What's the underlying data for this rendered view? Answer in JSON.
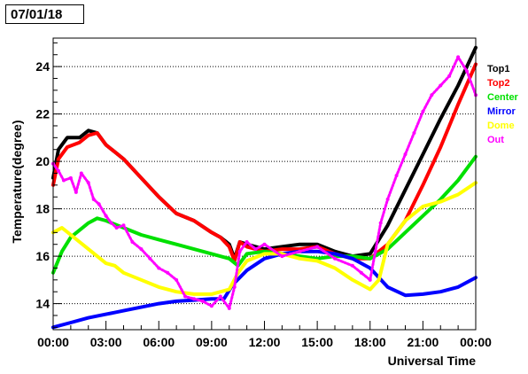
{
  "title": "07/01/18",
  "chart_data": {
    "type": "line",
    "title": "07/01/18",
    "xlabel": "Universal Time",
    "ylabel": "Temperature(degree)",
    "xlim": [
      0,
      24
    ],
    "ylim": [
      12.9,
      25.2
    ],
    "x_ticks": [
      0,
      3,
      6,
      9,
      12,
      15,
      18,
      21,
      24
    ],
    "x_tick_labels": [
      "00:00",
      "03:00",
      "06:00",
      "09:00",
      "12:00",
      "15:00",
      "18:00",
      "21:00",
      "00:00"
    ],
    "y_ticks": [
      14,
      16,
      18,
      20,
      22,
      24
    ],
    "y_tick_labels": [
      "14",
      "16",
      "18",
      "20",
      "22",
      "24"
    ],
    "grid": "horizontal dotted",
    "legend_position": "right",
    "series": [
      {
        "name": "Top1",
        "color": "#000000",
        "x": [
          0.0,
          0.3,
          0.8,
          1.5,
          2.0,
          2.5,
          3.0,
          4.0,
          5.0,
          6.0,
          7.0,
          8.0,
          9.0,
          9.5,
          10.0,
          10.3,
          10.6,
          11.0,
          12.0,
          13.0,
          14.0,
          15.0,
          16.0,
          17.0,
          18.0,
          19.0,
          20.0,
          21.0,
          22.0,
          23.0,
          24.0
        ],
        "y": [
          19.3,
          20.5,
          21.0,
          21.0,
          21.3,
          21.2,
          20.7,
          20.1,
          19.3,
          18.5,
          17.8,
          17.5,
          17.0,
          16.8,
          16.5,
          15.9,
          16.6,
          16.5,
          16.3,
          16.4,
          16.5,
          16.5,
          16.2,
          16.0,
          16.1,
          17.3,
          18.8,
          20.3,
          21.8,
          23.2,
          24.8
        ]
      },
      {
        "name": "Top2",
        "color": "#ff0000",
        "x": [
          0.0,
          0.3,
          0.8,
          1.5,
          2.0,
          2.5,
          3.0,
          4.0,
          5.0,
          6.0,
          7.0,
          8.0,
          9.0,
          9.5,
          10.0,
          10.3,
          10.6,
          11.0,
          12.0,
          13.0,
          14.0,
          15.0,
          16.0,
          17.0,
          18.0,
          19.0,
          20.0,
          21.0,
          22.0,
          23.0,
          24.0
        ],
        "y": [
          19.0,
          20.1,
          20.6,
          20.8,
          21.1,
          21.2,
          20.7,
          20.1,
          19.3,
          18.5,
          17.8,
          17.5,
          17.0,
          16.8,
          16.4,
          15.8,
          16.6,
          16.4,
          16.2,
          16.3,
          16.3,
          16.4,
          16.1,
          15.9,
          15.9,
          16.5,
          17.5,
          19.0,
          20.6,
          22.4,
          24.1
        ]
      },
      {
        "name": "Center",
        "color": "#00e000",
        "x": [
          0.0,
          0.5,
          1.0,
          2.0,
          2.5,
          3.0,
          4.0,
          5.0,
          6.0,
          7.0,
          8.0,
          9.0,
          10.0,
          10.5,
          11.0,
          12.0,
          13.0,
          14.0,
          15.0,
          16.0,
          17.0,
          18.0,
          19.0,
          20.0,
          21.0,
          22.0,
          23.0,
          24.0
        ],
        "y": [
          15.3,
          16.2,
          16.8,
          17.4,
          17.6,
          17.5,
          17.2,
          16.9,
          16.7,
          16.5,
          16.3,
          16.1,
          15.9,
          15.6,
          16.1,
          16.2,
          16.1,
          16.0,
          15.9,
          16.0,
          16.0,
          15.9,
          16.3,
          17.0,
          17.7,
          18.4,
          19.2,
          20.2
        ]
      },
      {
        "name": "Mirror",
        "color": "#0000ff",
        "x": [
          0.0,
          1.0,
          2.0,
          3.0,
          4.0,
          5.0,
          6.0,
          7.0,
          8.0,
          9.0,
          9.7,
          10.2,
          11.0,
          12.0,
          13.0,
          14.0,
          15.0,
          16.0,
          17.0,
          18.0,
          19.0,
          20.0,
          21.0,
          22.0,
          23.0,
          24.0
        ],
        "y": [
          13.0,
          13.2,
          13.4,
          13.55,
          13.7,
          13.85,
          14.0,
          14.1,
          14.15,
          14.2,
          14.2,
          14.8,
          15.4,
          15.9,
          16.1,
          16.2,
          16.2,
          16.1,
          15.9,
          15.5,
          14.7,
          14.35,
          14.4,
          14.5,
          14.7,
          15.1
        ]
      },
      {
        "name": "Dome",
        "color": "#ffff00",
        "x": [
          0.0,
          0.5,
          1.0,
          2.0,
          3.0,
          3.5,
          4.0,
          5.0,
          6.0,
          7.0,
          8.0,
          9.0,
          10.0,
          10.5,
          11.0,
          12.0,
          13.0,
          14.0,
          15.0,
          16.0,
          17.0,
          18.0,
          18.5,
          19.0,
          20.0,
          21.0,
          22.0,
          23.0,
          24.0
        ],
        "y": [
          17.0,
          17.2,
          16.9,
          16.3,
          15.7,
          15.6,
          15.3,
          15.0,
          14.7,
          14.5,
          14.4,
          14.4,
          14.6,
          15.3,
          15.8,
          16.1,
          16.1,
          15.9,
          15.8,
          15.5,
          15.0,
          14.6,
          15.0,
          16.5,
          17.5,
          18.1,
          18.3,
          18.6,
          19.1
        ]
      },
      {
        "name": "Out",
        "color": "#ff00ff",
        "x": [
          0.0,
          0.3,
          0.6,
          1.0,
          1.3,
          1.6,
          2.0,
          2.3,
          2.6,
          3.0,
          3.3,
          3.6,
          4.0,
          4.5,
          5.0,
          5.5,
          6.0,
          6.5,
          7.0,
          7.5,
          8.0,
          8.5,
          9.0,
          9.5,
          10.0,
          10.3,
          10.6,
          11.0,
          11.5,
          12.0,
          13.0,
          14.0,
          15.0,
          16.0,
          17.0,
          17.5,
          18.0,
          18.3,
          18.6,
          19.0,
          19.5,
          20.0,
          20.5,
          21.0,
          21.5,
          22.0,
          22.5,
          23.0,
          23.5,
          24.0
        ],
        "y": [
          19.9,
          19.6,
          19.2,
          19.3,
          18.7,
          19.5,
          19.1,
          18.4,
          18.2,
          17.7,
          17.4,
          17.2,
          17.3,
          16.6,
          16.3,
          15.9,
          15.5,
          15.3,
          15.0,
          14.3,
          14.2,
          14.1,
          13.9,
          14.3,
          13.8,
          14.7,
          16.2,
          16.6,
          16.3,
          16.5,
          16.0,
          16.2,
          16.4,
          15.9,
          15.6,
          15.3,
          15.0,
          16.2,
          17.4,
          18.4,
          19.4,
          20.3,
          21.2,
          22.1,
          22.8,
          23.2,
          23.6,
          24.4,
          23.8,
          22.8
        ]
      }
    ]
  }
}
